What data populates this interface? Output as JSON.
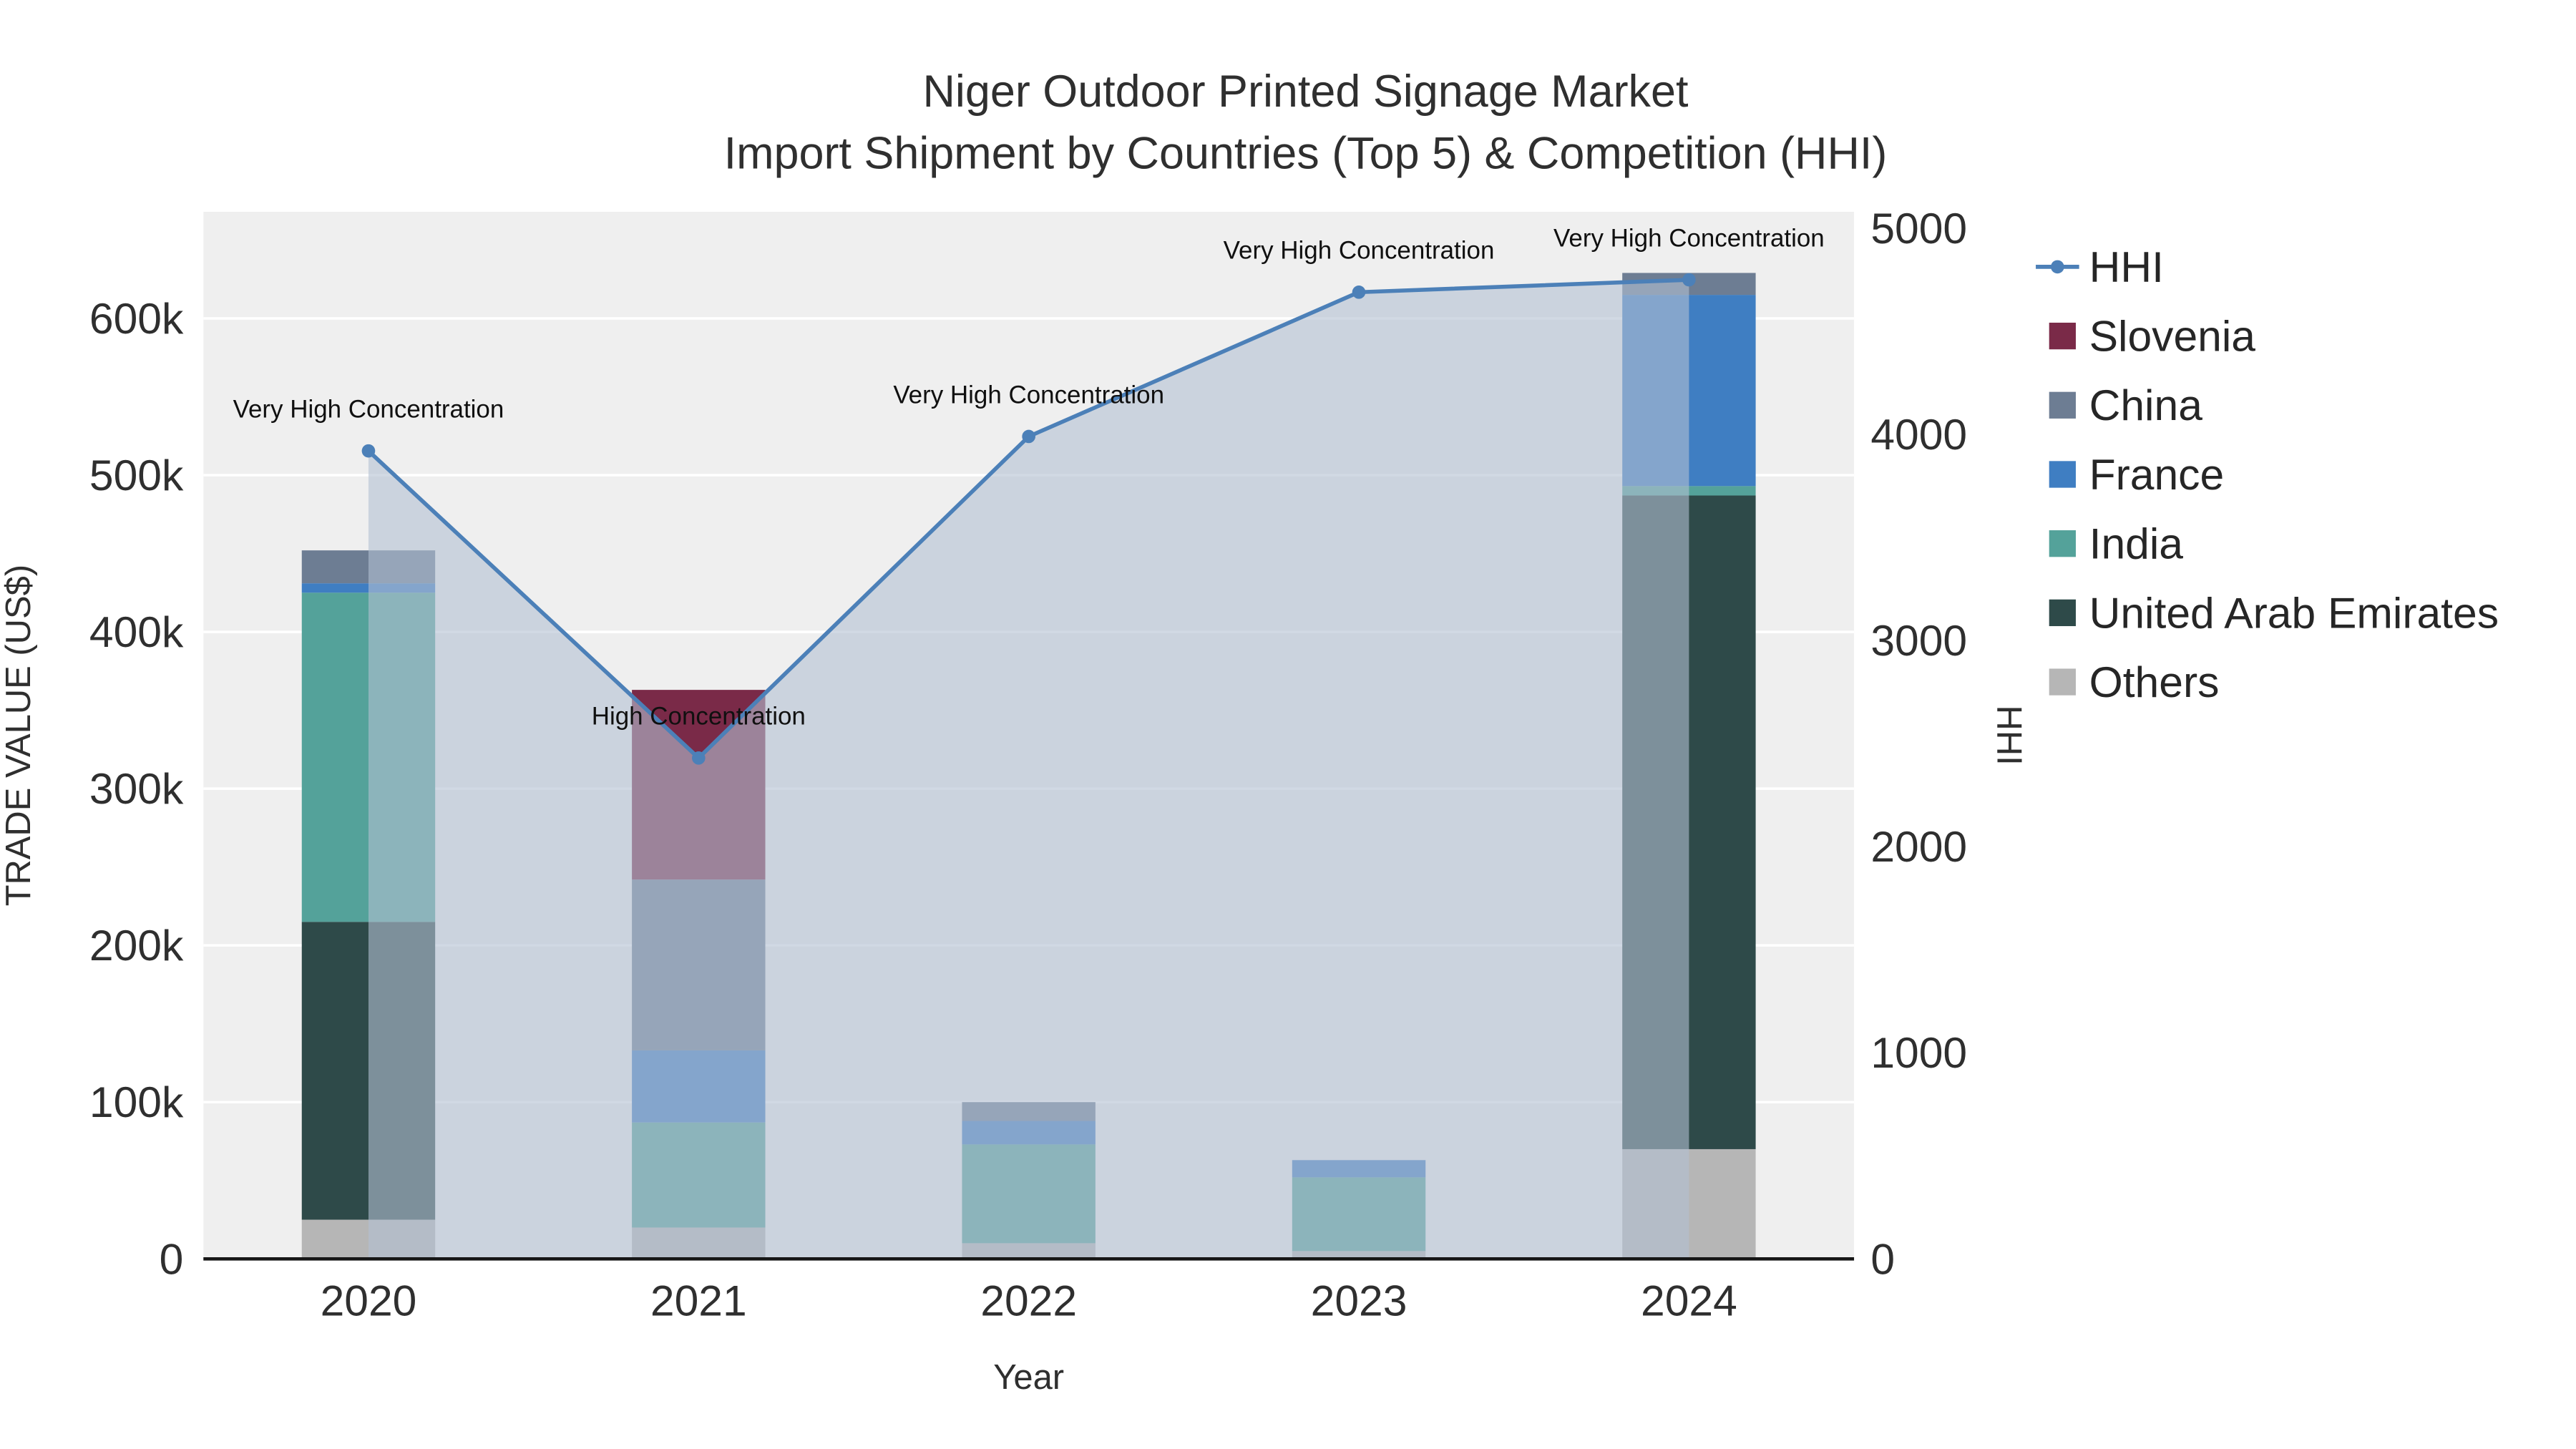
{
  "chart_data": {
    "type": "bar",
    "subtype": "stacked-bar-with-line",
    "title": "Niger Outdoor Printed Signage Market",
    "subtitle": "Import Shipment by Countries (Top 5) & Competition (HHI)",
    "xlabel": "Year",
    "ylabel_left": "TRADE VALUE (US$)",
    "ylabel_right": "HHI",
    "categories": [
      "2020",
      "2021",
      "2022",
      "2023",
      "2024"
    ],
    "bar_series": [
      {
        "name": "Others",
        "color": "#b6b6b6",
        "values": [
          25000,
          20000,
          10000,
          5000,
          70000
        ]
      },
      {
        "name": "United Arab Emirates",
        "color": "#2e4a49",
        "values": [
          190000,
          0,
          0,
          0,
          417000
        ]
      },
      {
        "name": "India",
        "color": "#54a29a",
        "values": [
          210000,
          67000,
          63000,
          47000,
          6000
        ]
      },
      {
        "name": "France",
        "color": "#3f7ec2",
        "values": [
          6000,
          46000,
          15000,
          11000,
          122000
        ]
      },
      {
        "name": "China",
        "color": "#6d7d93",
        "values": [
          21000,
          109000,
          12000,
          0,
          14000
        ]
      },
      {
        "name": "Slovenia",
        "color": "#7a2a48",
        "values": [
          0,
          121000,
          0,
          0,
          0
        ]
      }
    ],
    "line_series": {
      "name": "HHI",
      "color": "#4c80b8",
      "values": [
        3920,
        2430,
        3990,
        4690,
        4750
      ],
      "area_fill_color": "#b3c0d2",
      "area_fill_opacity": 0.6
    },
    "annotations": [
      {
        "category": "2020",
        "text": "Very High Concentration"
      },
      {
        "category": "2021",
        "text": "High Concentration"
      },
      {
        "category": "2022",
        "text": "Very High Concentration"
      },
      {
        "category": "2023",
        "text": "Very High Concentration"
      },
      {
        "category": "2024",
        "text": "Very High Concentration"
      }
    ],
    "left_ticks": {
      "values": [
        0,
        100000,
        200000,
        300000,
        400000,
        500000,
        600000
      ],
      "labels": [
        "0",
        "100k",
        "200k",
        "300k",
        "400k",
        "500k",
        "600k"
      ]
    },
    "right_ticks": {
      "values": [
        0,
        1000,
        2000,
        3000,
        4000,
        5000
      ],
      "labels": [
        "0",
        "1000",
        "2000",
        "3000",
        "4000",
        "5000"
      ]
    },
    "ylim_left": [
      0,
      668000
    ],
    "ylim_right": [
      0,
      5080
    ],
    "grid": "horizontal-only",
    "legend_position": "right",
    "legend": {
      "items": [
        {
          "label": "HHI",
          "glyph": "line",
          "color": "#4c80b8"
        },
        {
          "label": "Slovenia",
          "glyph": "swatch",
          "color": "#7a2a48"
        },
        {
          "label": "China",
          "glyph": "swatch",
          "color": "#6d7d93"
        },
        {
          "label": "France",
          "glyph": "swatch",
          "color": "#3f7ec2"
        },
        {
          "label": "India",
          "glyph": "swatch",
          "color": "#54a29a"
        },
        {
          "label": "United Arab Emirates",
          "glyph": "swatch",
          "color": "#2e4a49"
        },
        {
          "label": "Others",
          "glyph": "swatch",
          "color": "#b6b6b6"
        }
      ]
    },
    "colors": {
      "plot_bg": "#efefef",
      "grid": "#ffffff",
      "axis_line": "#161616",
      "text": "#2f2f2f"
    }
  }
}
